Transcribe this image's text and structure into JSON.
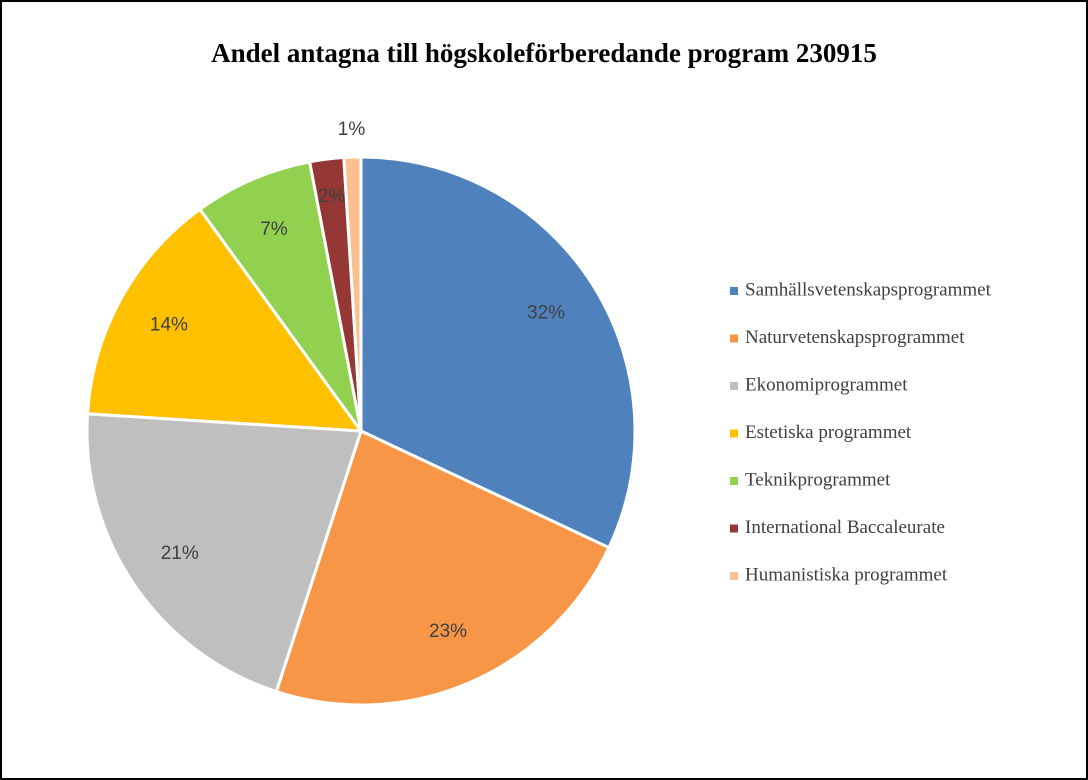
{
  "chart_data": {
    "type": "pie",
    "title": "Andel antagna till högskoleförberedande program 230915",
    "categories": [
      "Samhällsvetenskapsprogrammet",
      "Naturvetenskapsprogrammet",
      "Ekonomiprogrammet",
      "Estetiska programmet",
      "Teknikprogrammet",
      "International Baccaleurate",
      "Humanistiska programmet"
    ],
    "values": [
      32,
      23,
      21,
      14,
      7,
      2,
      1
    ],
    "value_labels": [
      "32%",
      "23%",
      "21%",
      "14%",
      "7%",
      "2%",
      "1%"
    ],
    "colors": [
      "#4f81bd",
      "#f79646",
      "#bfbfbf",
      "#ffc000",
      "#92d050",
      "#953735",
      "#fac090"
    ],
    "legend": "right"
  }
}
